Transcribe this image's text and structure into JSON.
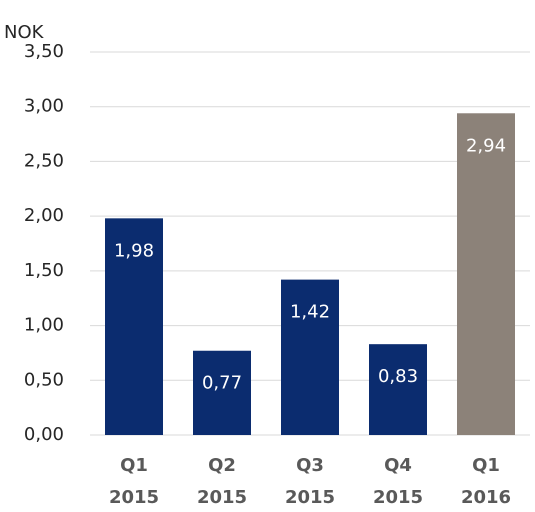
{
  "chart_data": {
    "type": "bar",
    "y_label": "NOK",
    "categories": [
      [
        "Q1",
        "2015"
      ],
      [
        "Q2",
        "2015"
      ],
      [
        "Q3",
        "2015"
      ],
      [
        "Q4",
        "2015"
      ],
      [
        "Q1",
        "2016"
      ]
    ],
    "values": [
      1.98,
      0.77,
      1.42,
      0.83,
      2.94
    ],
    "value_labels": [
      "1,98",
      "0,77",
      "1,42",
      "0,83",
      "2,94"
    ],
    "colors": [
      "#0b2c6f",
      "#0b2c6f",
      "#0b2c6f",
      "#0b2c6f",
      "#8c8279"
    ],
    "ylim": [
      0,
      3.5
    ],
    "yticks": [
      {
        "value": 0,
        "label": "0,00"
      },
      {
        "value": 0.5,
        "label": "0,50"
      },
      {
        "value": 1,
        "label": "1,00"
      },
      {
        "value": 1.5,
        "label": "1,50"
      },
      {
        "value": 2,
        "label": "2,00"
      },
      {
        "value": 2.5,
        "label": "2,50"
      },
      {
        "value": 3,
        "label": "3,00"
      },
      {
        "value": 3.5,
        "label": "3,50"
      }
    ],
    "grid": true
  }
}
